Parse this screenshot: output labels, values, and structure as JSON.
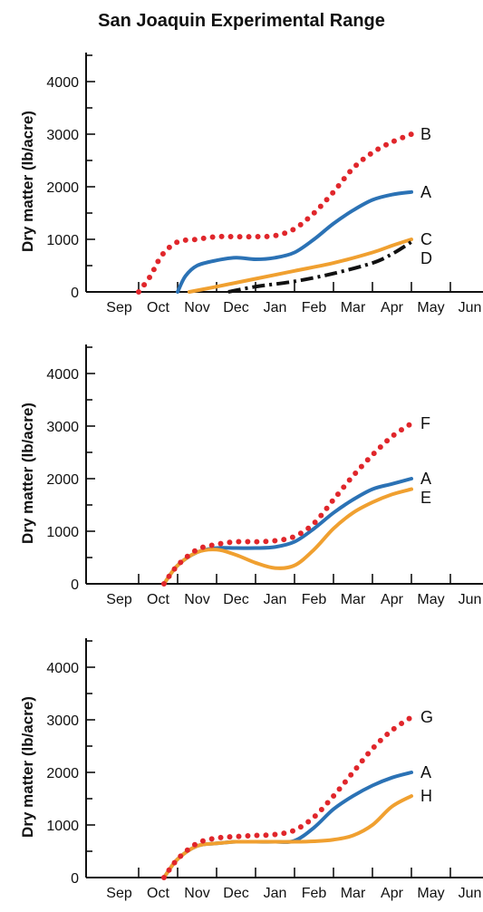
{
  "title": "San Joaquin Experimental Range",
  "colors": {
    "dotted_red": "#e0262b",
    "blue": "#2b72b5",
    "orange": "#f0a030",
    "black": "#111111"
  },
  "chart_data": [
    {
      "type": "line",
      "ylabel": "Dry matter (lb/acre)",
      "xlabel": "",
      "months": [
        "Sep",
        "Oct",
        "Nov",
        "Dec",
        "Jan",
        "Feb",
        "Mar",
        "Apr",
        "May",
        "Jun"
      ],
      "yticks": [
        0,
        1000,
        2000,
        3000,
        4000
      ],
      "ylim": [
        0,
        4500
      ],
      "series": [
        {
          "name": "B",
          "style": "dotted",
          "color": "#e0262b",
          "x": [
            1.0,
            1.3,
            1.6,
            2.0,
            2.5,
            3.0,
            3.5,
            4.0,
            4.5,
            5.0,
            5.5,
            6.0,
            6.5,
            7.0,
            7.5,
            8.0
          ],
          "y": [
            0,
            300,
            700,
            950,
            1000,
            1050,
            1050,
            1050,
            1070,
            1200,
            1500,
            1900,
            2350,
            2650,
            2850,
            3000
          ]
        },
        {
          "name": "A",
          "style": "solid",
          "color": "#2b72b5",
          "x": [
            2.0,
            2.2,
            2.5,
            3.0,
            3.5,
            4.0,
            4.5,
            5.0,
            5.5,
            6.0,
            6.5,
            7.0,
            7.5,
            8.0
          ],
          "y": [
            0,
            300,
            500,
            600,
            650,
            620,
            650,
            750,
            1000,
            1300,
            1550,
            1750,
            1850,
            1900
          ]
        },
        {
          "name": "C",
          "style": "solid",
          "color": "#f0a030",
          "x": [
            2.3,
            3.0,
            4.0,
            5.0,
            6.0,
            7.0,
            7.5,
            8.0
          ],
          "y": [
            0,
            100,
            250,
            400,
            550,
            750,
            880,
            1000
          ]
        },
        {
          "name": "D",
          "style": "dashdot",
          "color": "#111111",
          "x": [
            3.3,
            4.0,
            5.0,
            6.0,
            7.0,
            7.5,
            8.0
          ],
          "y": [
            0,
            100,
            200,
            350,
            550,
            720,
            950
          ]
        }
      ]
    },
    {
      "type": "line",
      "ylabel": "Dry matter (lb/acre)",
      "xlabel": "",
      "months": [
        "Sep",
        "Oct",
        "Nov",
        "Dec",
        "Jan",
        "Feb",
        "Mar",
        "Apr",
        "May",
        "Jun"
      ],
      "yticks": [
        0,
        1000,
        2000,
        3000,
        4000
      ],
      "ylim": [
        0,
        4500
      ],
      "series": [
        {
          "name": "F",
          "style": "dotted",
          "color": "#e0262b",
          "x": [
            1.65,
            2.0,
            2.5,
            3.0,
            3.5,
            4.0,
            4.5,
            5.0,
            5.5,
            6.0,
            6.5,
            7.0,
            7.5,
            8.0
          ],
          "y": [
            0,
            350,
            650,
            750,
            800,
            800,
            820,
            900,
            1150,
            1600,
            2050,
            2450,
            2800,
            3050
          ]
        },
        {
          "name": "A",
          "style": "solid",
          "color": "#2b72b5",
          "x": [
            1.65,
            2.0,
            2.5,
            3.0,
            3.5,
            4.0,
            4.5,
            5.0,
            5.5,
            6.0,
            6.5,
            7.0,
            7.5,
            8.0
          ],
          "y": [
            0,
            350,
            600,
            680,
            680,
            680,
            700,
            800,
            1050,
            1350,
            1600,
            1800,
            1900,
            2000
          ]
        },
        {
          "name": "E",
          "style": "solid",
          "color": "#f0a030",
          "x": [
            1.65,
            2.0,
            2.5,
            3.0,
            3.5,
            4.0,
            4.5,
            5.0,
            5.5,
            6.0,
            6.5,
            7.0,
            7.5,
            8.0
          ],
          "y": [
            0,
            350,
            600,
            650,
            550,
            400,
            300,
            350,
            650,
            1050,
            1350,
            1550,
            1700,
            1800
          ]
        }
      ]
    },
    {
      "type": "line",
      "ylabel": "Dry matter (lb/acre)",
      "xlabel": "",
      "months": [
        "Sep",
        "Oct",
        "Nov",
        "Dec",
        "Jan",
        "Feb",
        "Mar",
        "Apr",
        "May",
        "Jun"
      ],
      "yticks": [
        0,
        1000,
        2000,
        3000,
        4000
      ],
      "ylim": [
        0,
        4500
      ],
      "series": [
        {
          "name": "G",
          "style": "dotted",
          "color": "#e0262b",
          "x": [
            1.65,
            2.0,
            2.5,
            3.0,
            3.5,
            4.0,
            4.5,
            5.0,
            5.5,
            6.0,
            6.5,
            7.0,
            7.5,
            8.0
          ],
          "y": [
            0,
            350,
            650,
            750,
            780,
            800,
            820,
            900,
            1150,
            1550,
            2000,
            2450,
            2800,
            3050
          ]
        },
        {
          "name": "A",
          "style": "solid",
          "color": "#2b72b5",
          "x": [
            1.65,
            2.0,
            2.5,
            3.0,
            3.5,
            4.0,
            4.5,
            5.0,
            5.5,
            6.0,
            6.5,
            7.0,
            7.5,
            8.0
          ],
          "y": [
            0,
            350,
            600,
            650,
            680,
            680,
            680,
            700,
            950,
            1300,
            1550,
            1750,
            1900,
            2000
          ]
        },
        {
          "name": "H",
          "style": "solid",
          "color": "#f0a030",
          "x": [
            1.65,
            2.0,
            2.5,
            3.0,
            3.5,
            4.0,
            4.5,
            5.0,
            5.5,
            6.0,
            6.5,
            7.0,
            7.5,
            8.0
          ],
          "y": [
            0,
            350,
            600,
            650,
            680,
            680,
            680,
            680,
            690,
            720,
            800,
            1000,
            1350,
            1550
          ]
        }
      ]
    }
  ]
}
